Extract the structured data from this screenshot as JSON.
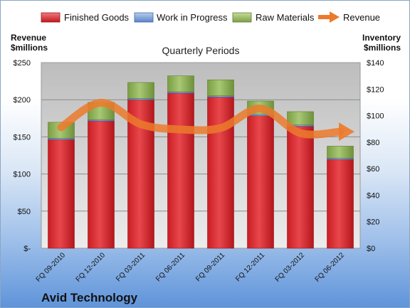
{
  "chart_data": {
    "type": "bar",
    "title": "Quarterly Periods",
    "company": "Avid Technology",
    "left_axis_title": [
      "Revenue",
      "$millions"
    ],
    "right_axis_title": [
      "Inventory",
      "$millions"
    ],
    "categories": [
      "FQ 09-2010",
      "FQ 12-2010",
      "FQ 03-2011",
      "FQ 06-2011",
      "FQ 09-2011",
      "FQ 12-2011",
      "FQ 03-2012",
      "FQ 06-2012"
    ],
    "left_ticks": [
      "$-",
      "$50",
      "$100",
      "$150",
      "$200",
      "$250"
    ],
    "right_ticks": [
      "$0",
      "$20",
      "$40",
      "$60",
      "$80",
      "$100",
      "$120",
      "$140"
    ],
    "left_ylim": [
      0,
      250
    ],
    "right_ylim": [
      0,
      140
    ],
    "stacked": true,
    "grid": true,
    "legend_position": "top",
    "series": [
      {
        "name": "Finished Goods",
        "kind": "bar",
        "axis": "right",
        "color": "#d6262c",
        "values": [
          82,
          96,
          112,
          117,
          114,
          100,
          92,
          67
        ]
      },
      {
        "name": "Work in Progress",
        "kind": "bar",
        "axis": "right",
        "color": "#5b84c8",
        "values": [
          1,
          1,
          1,
          1,
          1,
          1,
          1,
          1
        ]
      },
      {
        "name": "Raw Materials",
        "kind": "bar",
        "axis": "right",
        "color": "#8fb35a",
        "values": [
          12,
          13,
          12,
          12,
          12,
          10,
          10,
          9
        ]
      },
      {
        "name": "Revenue",
        "kind": "line",
        "axis": "left",
        "color": "#ec7a2c",
        "values": [
          163,
          196,
          167,
          160,
          162,
          188,
          155,
          157
        ]
      }
    ]
  }
}
